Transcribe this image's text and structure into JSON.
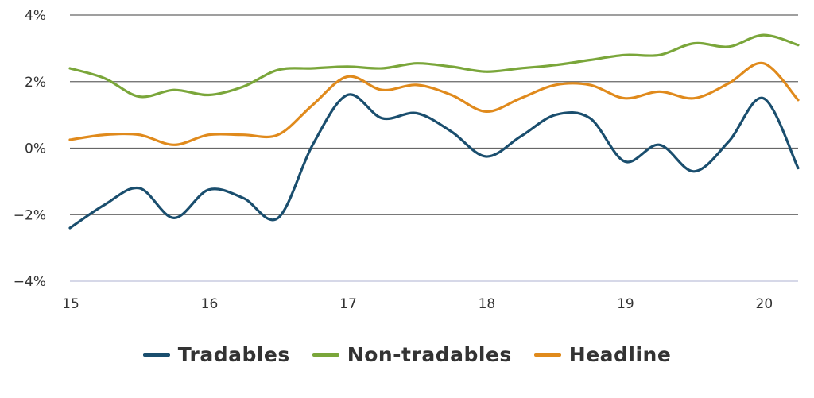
{
  "chart_data": {
    "type": "line",
    "title": "",
    "xlabel": "",
    "ylabel": "",
    "xlim": [
      15,
      20.25
    ],
    "ylim": [
      -4,
      4
    ],
    "grid": true,
    "legend_position": "bottom",
    "x_ticks": [
      15,
      16,
      17,
      18,
      19,
      20
    ],
    "x_tick_labels": [
      "15",
      "16",
      "17",
      "18",
      "19",
      "20"
    ],
    "y_ticks": [
      -4,
      -2,
      0,
      2,
      4
    ],
    "y_tick_labels": [
      "−4%",
      "−2%",
      "0%",
      "2%",
      "4%"
    ],
    "x": [
      15,
      15.25,
      15.5,
      15.75,
      16,
      16.25,
      16.5,
      16.75,
      17,
      17.25,
      17.5,
      17.75,
      18,
      18.25,
      18.5,
      18.75,
      19,
      19.25,
      19.5,
      19.75,
      20,
      20.25
    ],
    "series": [
      {
        "name": "Tradables",
        "color": "#1a4e6e",
        "values": [
          -2.4,
          -1.7,
          -1.2,
          -2.1,
          -1.25,
          -1.5,
          -2.1,
          0.1,
          1.6,
          0.9,
          1.05,
          0.5,
          -0.25,
          0.35,
          1.0,
          0.9,
          -0.4,
          0.1,
          -0.7,
          0.2,
          1.5,
          -0.6
        ]
      },
      {
        "name": "Non-tradables",
        "color": "#7aa63a",
        "values": [
          2.4,
          2.1,
          1.55,
          1.75,
          1.6,
          1.85,
          2.35,
          2.4,
          2.45,
          2.4,
          2.55,
          2.45,
          2.3,
          2.4,
          2.5,
          2.65,
          2.8,
          2.8,
          3.15,
          3.05,
          3.4,
          3.1
        ]
      },
      {
        "name": "Headline",
        "color": "#e08a1c",
        "values": [
          0.25,
          0.4,
          0.4,
          0.1,
          0.4,
          0.4,
          0.4,
          1.3,
          2.15,
          1.75,
          1.9,
          1.6,
          1.1,
          1.5,
          1.9,
          1.9,
          1.5,
          1.7,
          1.5,
          1.95,
          2.55,
          1.45
        ]
      }
    ]
  }
}
